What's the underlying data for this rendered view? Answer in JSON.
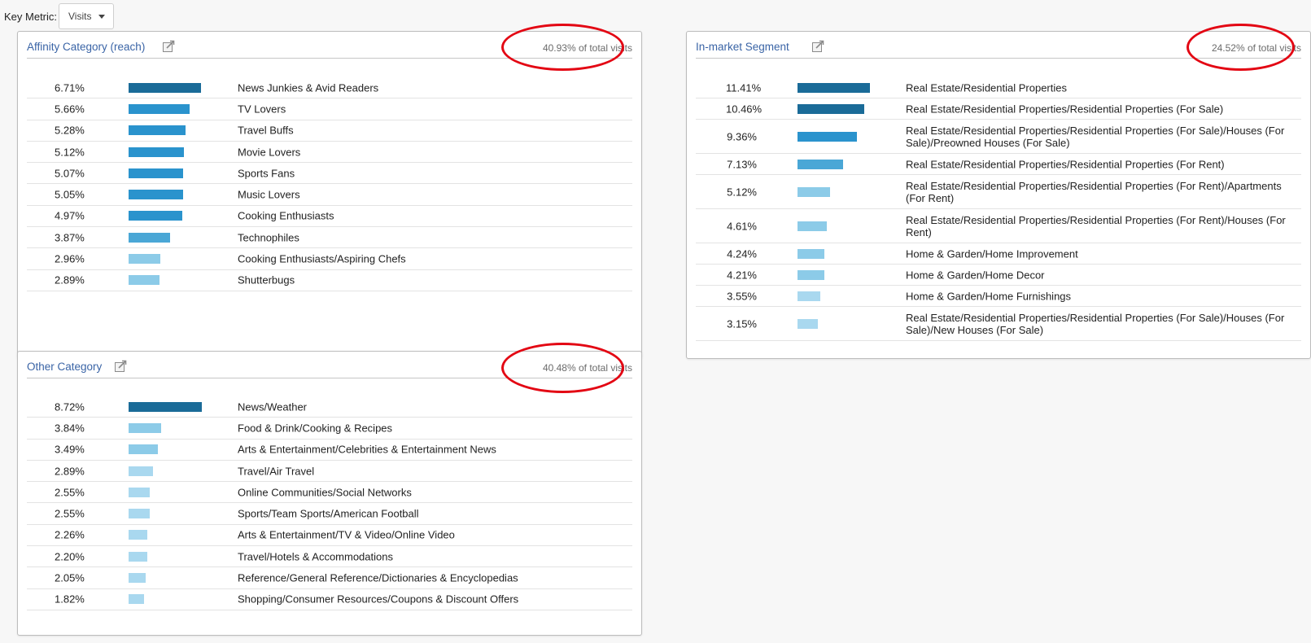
{
  "key_metric": {
    "label": "Key Metric:",
    "selected": "Visits"
  },
  "colors": {
    "highlight_ring": "#e30613",
    "bar_dark": "#1a6b98",
    "bar_mid": "#2a93cd",
    "bar_light": "#8ccbe8",
    "bar_lightest": "#a9d8ef",
    "title_link": "#3a64a6"
  },
  "panels": {
    "affinity": {
      "title": "Affinity Category (reach)",
      "icon": "export-icon",
      "total": "40.93% of total visits",
      "rows": [
        {
          "pct": "6.71%",
          "value": 6.71,
          "label": "News Junkies & Avid Readers"
        },
        {
          "pct": "5.66%",
          "value": 5.66,
          "label": "TV Lovers"
        },
        {
          "pct": "5.28%",
          "value": 5.28,
          "label": "Travel Buffs"
        },
        {
          "pct": "5.12%",
          "value": 5.12,
          "label": "Movie Lovers"
        },
        {
          "pct": "5.07%",
          "value": 5.07,
          "label": "Sports Fans"
        },
        {
          "pct": "5.05%",
          "value": 5.05,
          "label": "Music Lovers"
        },
        {
          "pct": "4.97%",
          "value": 4.97,
          "label": "Cooking Enthusiasts"
        },
        {
          "pct": "3.87%",
          "value": 3.87,
          "label": "Technophiles"
        },
        {
          "pct": "2.96%",
          "value": 2.96,
          "label": "Cooking Enthusiasts/Aspiring Chefs"
        },
        {
          "pct": "2.89%",
          "value": 2.89,
          "label": "Shutterbugs"
        }
      ]
    },
    "other": {
      "title": "Other Category",
      "icon": "export-icon",
      "total": "40.48% of total visits",
      "rows": [
        {
          "pct": "8.72%",
          "value": 8.72,
          "label": "News/Weather"
        },
        {
          "pct": "3.84%",
          "value": 3.84,
          "label": "Food & Drink/Cooking & Recipes"
        },
        {
          "pct": "3.49%",
          "value": 3.49,
          "label": "Arts & Entertainment/Celebrities & Entertainment News"
        },
        {
          "pct": "2.89%",
          "value": 2.89,
          "label": "Travel/Air Travel"
        },
        {
          "pct": "2.55%",
          "value": 2.55,
          "label": "Online Communities/Social Networks"
        },
        {
          "pct": "2.55%",
          "value": 2.55,
          "label": "Sports/Team Sports/American Football"
        },
        {
          "pct": "2.26%",
          "value": 2.26,
          "label": "Arts & Entertainment/TV & Video/Online Video"
        },
        {
          "pct": "2.20%",
          "value": 2.2,
          "label": "Travel/Hotels & Accommodations"
        },
        {
          "pct": "2.05%",
          "value": 2.05,
          "label": "Reference/General Reference/Dictionaries & Encyclopedias"
        },
        {
          "pct": "1.82%",
          "value": 1.82,
          "label": "Shopping/Consumer Resources/Coupons & Discount Offers"
        }
      ]
    },
    "inmarket": {
      "title": "In-market Segment",
      "icon": "export-icon",
      "total": "24.52% of total visits",
      "rows": [
        {
          "pct": "11.41%",
          "value": 11.41,
          "label": "Real Estate/Residential Properties"
        },
        {
          "pct": "10.46%",
          "value": 10.46,
          "label": "Real Estate/Residential Properties/Residential Properties (For Sale)"
        },
        {
          "pct": "9.36%",
          "value": 9.36,
          "label": "Real Estate/Residential Properties/Residential Properties (For Sale)/Houses (For Sale)/Preowned Houses (For Sale)"
        },
        {
          "pct": "7.13%",
          "value": 7.13,
          "label": "Real Estate/Residential Properties/Residential Properties (For Rent)"
        },
        {
          "pct": "5.12%",
          "value": 5.12,
          "label": "Real Estate/Residential Properties/Residential Properties (For Rent)/Apartments (For Rent)"
        },
        {
          "pct": "4.61%",
          "value": 4.61,
          "label": "Real Estate/Residential Properties/Residential Properties (For Rent)/Houses (For Rent)"
        },
        {
          "pct": "4.24%",
          "value": 4.24,
          "label": "Home & Garden/Home Improvement"
        },
        {
          "pct": "4.21%",
          "value": 4.21,
          "label": "Home & Garden/Home Decor"
        },
        {
          "pct": "3.55%",
          "value": 3.55,
          "label": "Home & Garden/Home Furnishings"
        },
        {
          "pct": "3.15%",
          "value": 3.15,
          "label": "Real Estate/Residential Properties/Residential Properties (For Sale)/Houses (For Sale)/New Houses (For Sale)"
        }
      ]
    }
  }
}
